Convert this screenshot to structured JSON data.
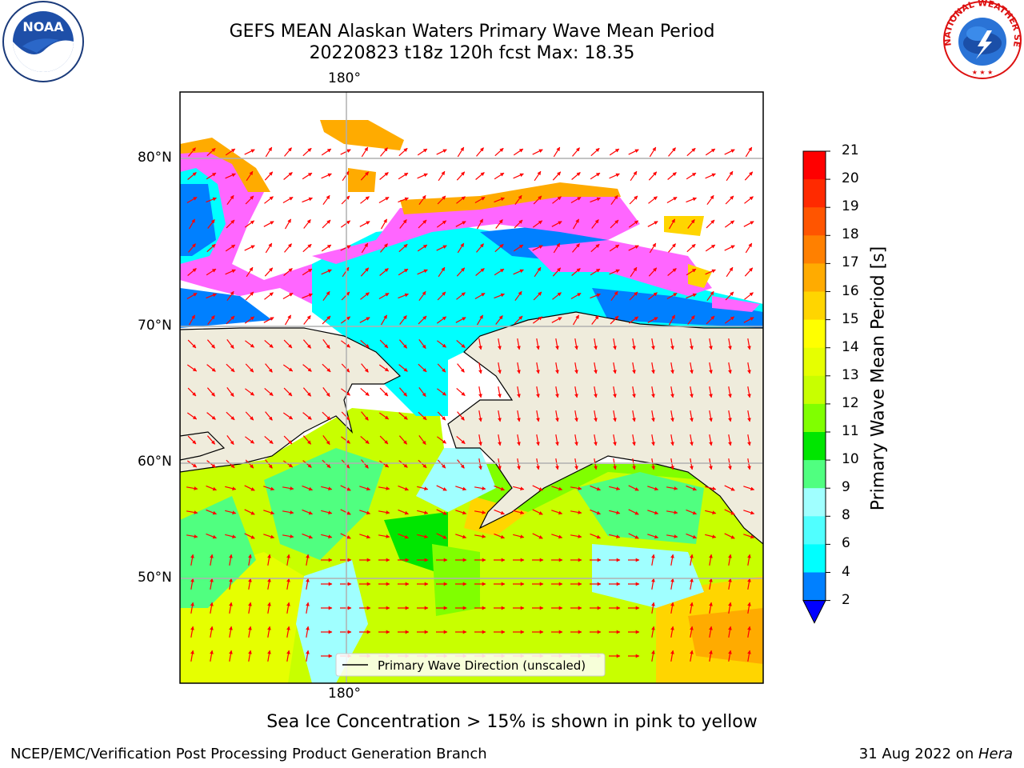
{
  "title": {
    "line1": "GEFS MEAN Alaskan Waters Primary Wave Mean Period",
    "line2": "20220823 t18z 120h fcst   Max: 18.35"
  },
  "map": {
    "lon_top": "180°",
    "lon_bottom": "180°",
    "lat_labels": [
      "80°N",
      "70°N",
      "60°N",
      "50°N"
    ],
    "legend_text": "Primary Wave Direction (unscaled)",
    "colors": {
      "land": "#efecdc",
      "ice_pink": "#ff66ff",
      "arrow": "#ff0000"
    }
  },
  "colorbar": {
    "label": "Primary Wave Mean Period [s]",
    "ticks": [
      "21",
      "20",
      "19",
      "18",
      "17",
      "16",
      "15",
      "14",
      "13",
      "12",
      "11",
      "10",
      "9",
      "8",
      "6",
      "4",
      "2"
    ],
    "colors": [
      "#ff0000",
      "#ff2a00",
      "#ff5500",
      "#ff8000",
      "#ffab00",
      "#ffd500",
      "#ffff00",
      "#e6ff00",
      "#c8ff00",
      "#80ff00",
      "#00e600",
      "#50ff80",
      "#a0ffff",
      "#50ffff",
      "#00ffff",
      "#0080ff"
    ],
    "extend_color": "#0000ff"
  },
  "footer": {
    "sea_ice_note": "Sea Ice Concentration > 15% is shown in pink to yellow",
    "branch": "NCEP/EMC/Verification Post Processing Product Generation Branch",
    "date": "31 Aug 2022 on ",
    "host": "Hera"
  },
  "logos": {
    "noaa_text": "NOAA",
    "nws_text": "NATIONAL WEATHER SERVICE"
  }
}
